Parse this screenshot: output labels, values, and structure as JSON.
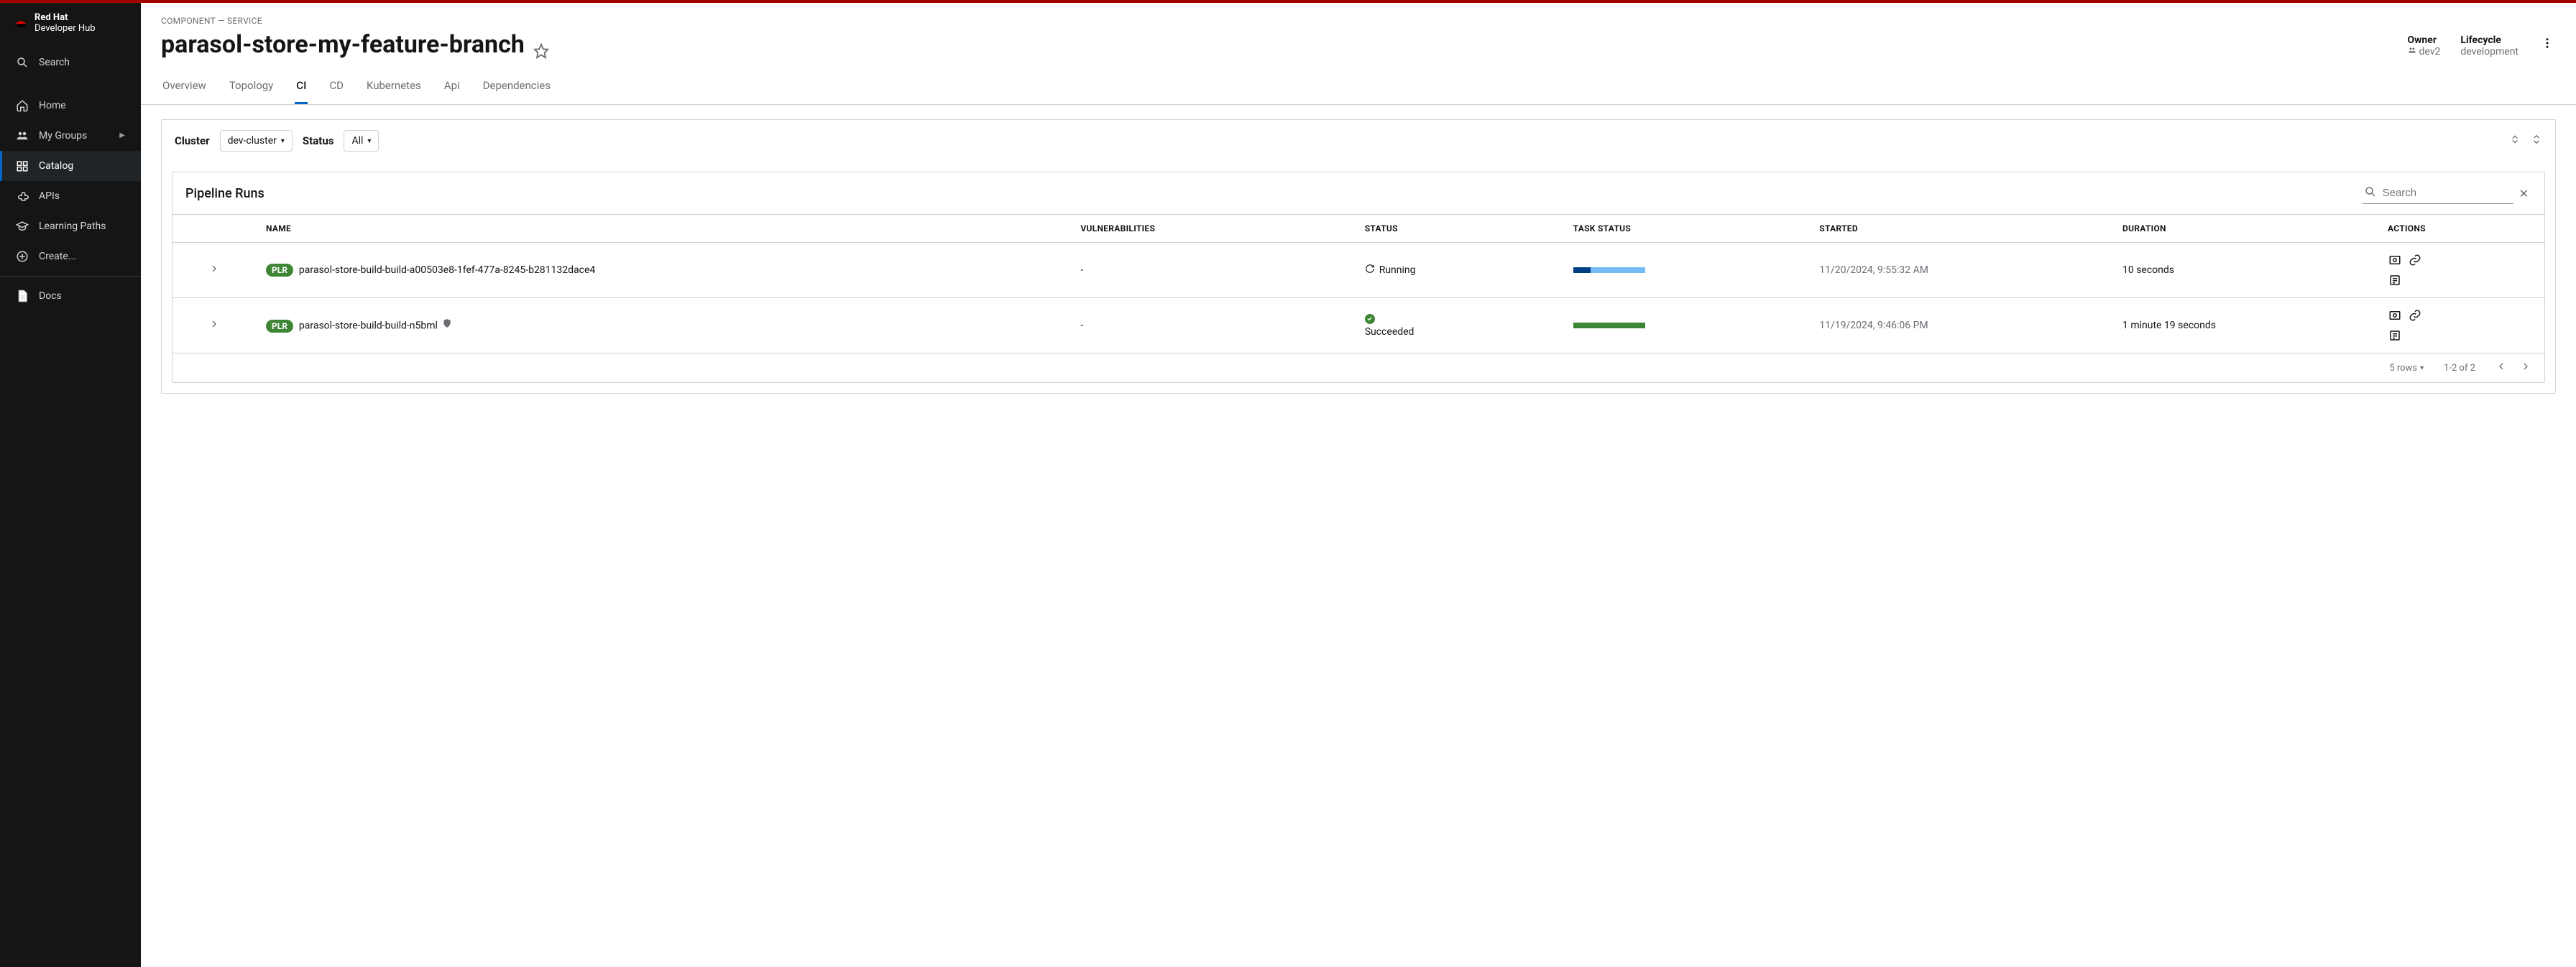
{
  "brand": {
    "line1": "Red Hat",
    "line2": "Developer Hub"
  },
  "sidebar": {
    "search": "Search",
    "items": [
      {
        "label": "Home"
      },
      {
        "label": "My Groups",
        "expandable": true
      },
      {
        "label": "Catalog",
        "active": true
      },
      {
        "label": "APIs"
      },
      {
        "label": "Learning Paths"
      },
      {
        "label": "Create..."
      }
    ],
    "docs": "Docs"
  },
  "header": {
    "breadcrumb": "COMPONENT — SERVICE",
    "title": "parasol-store-my-feature-branch",
    "owner_label": "Owner",
    "owner_value": "dev2",
    "lifecycle_label": "Lifecycle",
    "lifecycle_value": "development"
  },
  "tabs": [
    "Overview",
    "Topology",
    "CI",
    "CD",
    "Kubernetes",
    "Api",
    "Dependencies"
  ],
  "active_tab": "CI",
  "filters": {
    "cluster_label": "Cluster",
    "cluster_value": "dev-cluster",
    "status_label": "Status",
    "status_value": "All"
  },
  "pipeline": {
    "title": "Pipeline Runs",
    "search_placeholder": "Search",
    "columns": [
      "NAME",
      "VULNERABILITIES",
      "STATUS",
      "TASK STATUS",
      "STARTED",
      "DURATION",
      "ACTIONS"
    ],
    "rows": [
      {
        "badge": "PLR",
        "name": "parasol-store-build-build-a00503e8-1fef-477a-8245-b281132dace4",
        "vuln": "-",
        "status": "Running",
        "status_type": "running",
        "task_segments": [
          {
            "color": "#004080",
            "width": 24
          },
          {
            "color": "#73bcf7",
            "width": 76
          }
        ],
        "started": "11/20/2024, 9:55:32 AM",
        "duration": "10 seconds",
        "shield": false
      },
      {
        "badge": "PLR",
        "name": "parasol-store-build-build-n5bml",
        "vuln": "-",
        "status": "Succeeded",
        "status_type": "succeeded",
        "task_segments": [
          {
            "color": "#3e8635",
            "width": 100
          }
        ],
        "started": "11/19/2024, 9:46:06 PM",
        "duration": "1 minute 19 seconds",
        "shield": true
      }
    ],
    "footer": {
      "rows_label": "5 rows",
      "range": "1-2 of 2"
    }
  },
  "colors": {
    "accent": "#a30000",
    "primary": "#06c",
    "sidebar_bg": "#151515",
    "border": "#d2d2d2",
    "muted": "#6a6e73",
    "badge_green": "#3e8635"
  }
}
